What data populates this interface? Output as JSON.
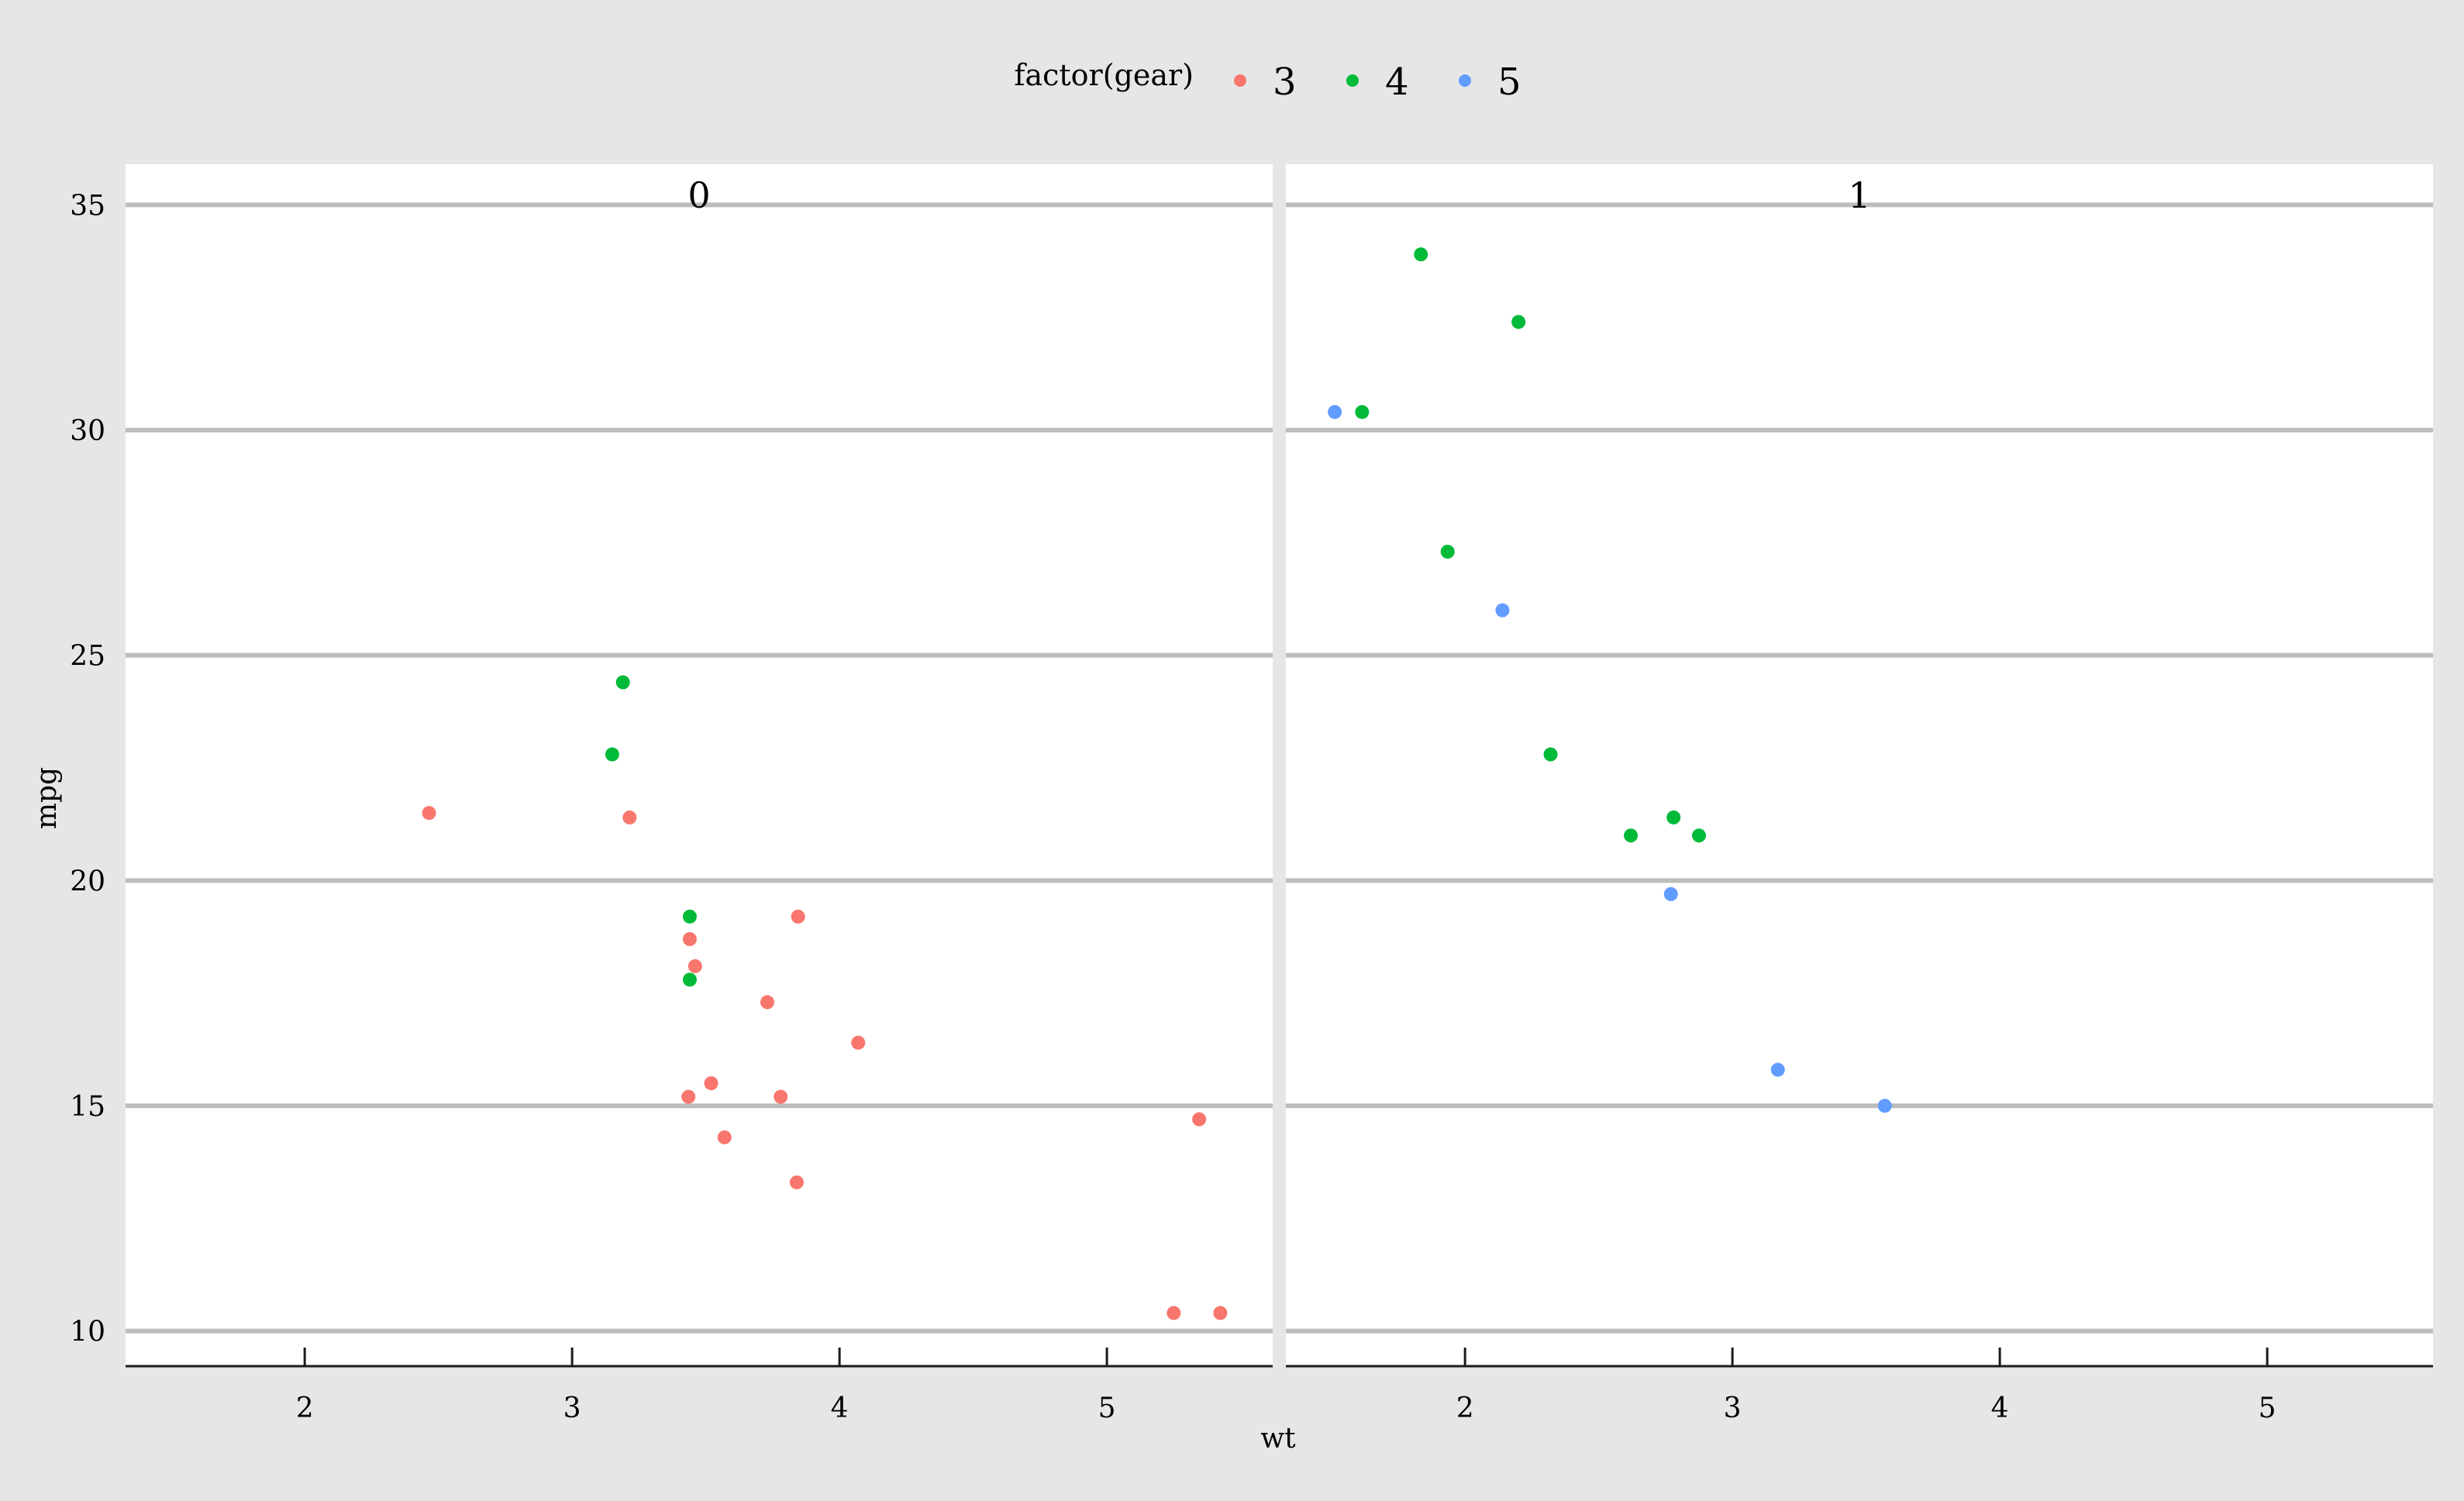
{
  "chart_data": {
    "type": "scatter",
    "facet_variable_values": [
      "0",
      "1"
    ],
    "xlabel": "wt",
    "ylabel": "mpg",
    "xlim": [
      1.33,
      5.62
    ],
    "ylim": [
      9.22,
      35.9
    ],
    "x_ticks": [
      2,
      3,
      4,
      5
    ],
    "y_ticks": [
      10,
      15,
      20,
      25,
      30,
      35
    ],
    "legend": {
      "title": "factor(gear)",
      "position": "top",
      "entries": [
        {
          "label": "3",
          "color": "#F8766D"
        },
        {
          "label": "4",
          "color": "#00BA38"
        },
        {
          "label": "5",
          "color": "#619CFF"
        }
      ]
    },
    "grid": {
      "horizontal_major": true,
      "vertical": false
    },
    "panels": [
      {
        "label": "0",
        "series": [
          {
            "name": "3",
            "points": [
              {
                "x": 2.465,
                "y": 21.5
              },
              {
                "x": 3.215,
                "y": 21.4
              },
              {
                "x": 3.44,
                "y": 18.7
              },
              {
                "x": 3.46,
                "y": 18.1
              },
              {
                "x": 3.57,
                "y": 14.3
              },
              {
                "x": 4.07,
                "y": 16.4
              },
              {
                "x": 3.73,
                "y": 17.3
              },
              {
                "x": 3.78,
                "y": 15.2
              },
              {
                "x": 5.25,
                "y": 10.4
              },
              {
                "x": 5.424,
                "y": 10.4
              },
              {
                "x": 5.345,
                "y": 14.7
              },
              {
                "x": 3.52,
                "y": 15.5
              },
              {
                "x": 3.435,
                "y": 15.2
              },
              {
                "x": 3.84,
                "y": 13.3
              },
              {
                "x": 3.845,
                "y": 19.2
              }
            ]
          },
          {
            "name": "4",
            "points": [
              {
                "x": 3.19,
                "y": 24.4
              },
              {
                "x": 3.15,
                "y": 22.8
              },
              {
                "x": 3.44,
                "y": 19.2
              },
              {
                "x": 3.44,
                "y": 17.8
              }
            ]
          },
          {
            "name": "5",
            "points": []
          }
        ]
      },
      {
        "label": "1",
        "series": [
          {
            "name": "3",
            "points": []
          },
          {
            "name": "4",
            "points": [
              {
                "x": 2.62,
                "y": 21.0
              },
              {
                "x": 2.875,
                "y": 21.0
              },
              {
                "x": 2.32,
                "y": 22.8
              },
              {
                "x": 2.2,
                "y": 32.4
              },
              {
                "x": 1.615,
                "y": 30.4
              },
              {
                "x": 1.835,
                "y": 33.9
              },
              {
                "x": 1.935,
                "y": 27.3
              },
              {
                "x": 2.78,
                "y": 21.4
              }
            ]
          },
          {
            "name": "5",
            "points": [
              {
                "x": 2.14,
                "y": 26.0
              },
              {
                "x": 1.513,
                "y": 30.4
              },
              {
                "x": 3.17,
                "y": 15.8
              },
              {
                "x": 2.77,
                "y": 19.7
              },
              {
                "x": 3.57,
                "y": 15.0
              }
            ]
          }
        ]
      }
    ]
  }
}
